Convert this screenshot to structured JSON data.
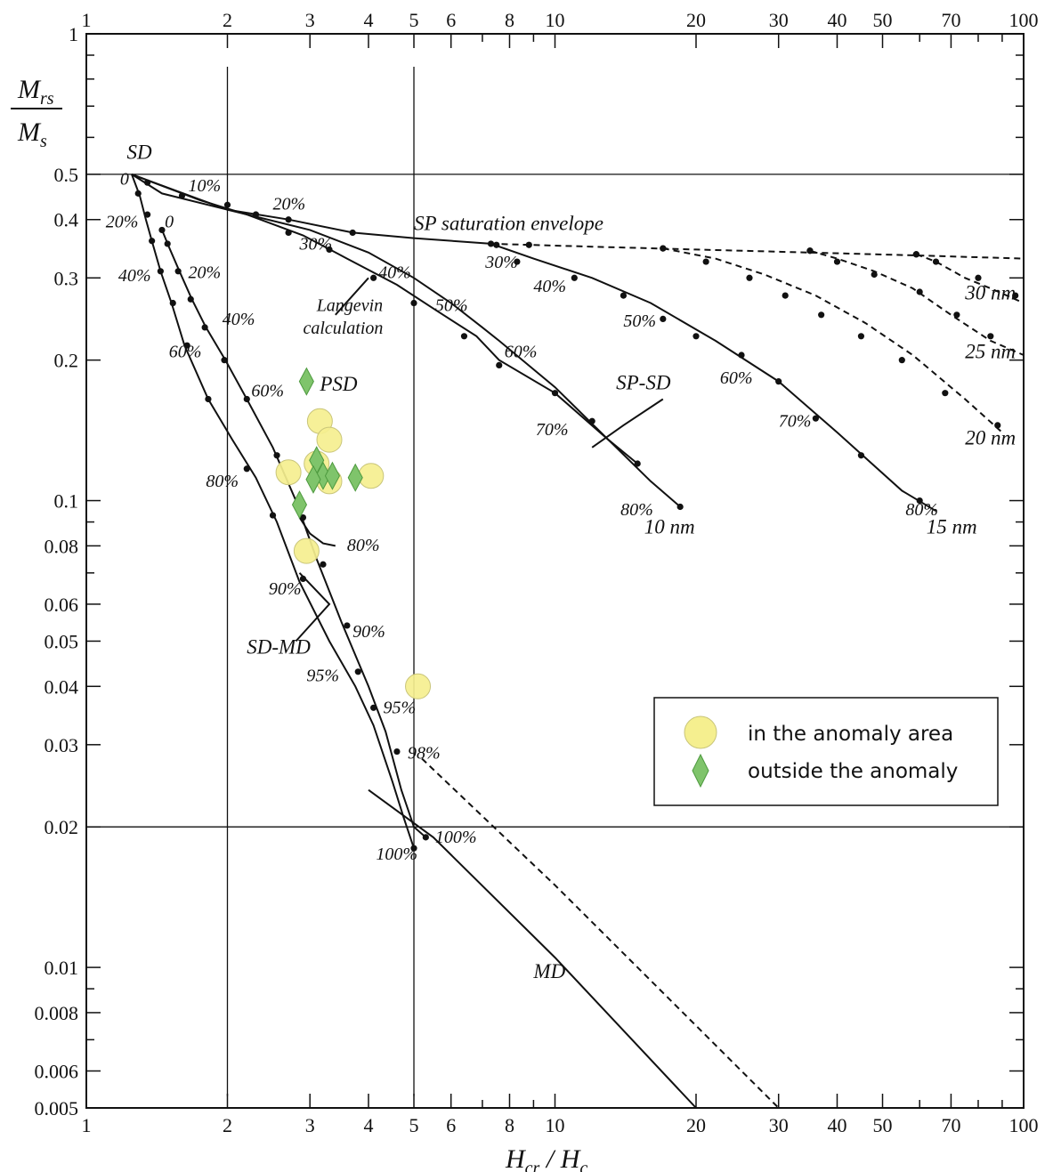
{
  "chart_data": {
    "type": "line",
    "xlabel": "Hcr / Hc",
    "ylabel": "Mrs / Ms",
    "x_scale": "log",
    "y_scale": "log",
    "xlim": [
      1,
      100
    ],
    "ylim": [
      0.005,
      1
    ],
    "x_ticks_major": [
      1,
      2,
      3,
      4,
      5,
      6,
      8,
      10,
      20,
      30,
      40,
      50,
      70,
      100
    ],
    "x_tick_labels": [
      "1",
      "2",
      "3",
      "4",
      "5",
      "6",
      "8",
      "10",
      "20",
      "30",
      "40",
      "50",
      "70",
      "100"
    ],
    "y_ticks_major": [
      0.005,
      0.006,
      0.008,
      0.01,
      0.02,
      0.03,
      0.04,
      0.05,
      0.06,
      0.08,
      0.1,
      0.2,
      0.3,
      0.4,
      0.5,
      1
    ],
    "y_tick_labels": [
      "0.005",
      "0.006",
      "0.008",
      "0.01",
      "0.02",
      "0.03",
      "0.04",
      "0.05",
      "0.06",
      "0.08",
      "0.1",
      "0.2",
      "0.3",
      "0.4",
      "0.5",
      "1"
    ],
    "reference_lines": {
      "horizontal": [
        0.5,
        0.02
      ],
      "vertical": [
        2,
        5
      ]
    },
    "series": [
      {
        "style": "solid",
        "points": [
          [
            1.25,
            0.5
          ],
          [
            1.3,
            0.45
          ],
          [
            1.34,
            0.4
          ],
          [
            1.38,
            0.36
          ],
          [
            1.44,
            0.31
          ],
          [
            1.52,
            0.265
          ],
          [
            1.62,
            0.215
          ],
          [
            1.82,
            0.165
          ],
          [
            2.05,
            0.135
          ],
          [
            2.3,
            0.112
          ],
          [
            2.55,
            0.09
          ],
          [
            2.85,
            0.067
          ],
          [
            3.3,
            0.05
          ],
          [
            3.75,
            0.04
          ],
          [
            4.1,
            0.033
          ],
          [
            4.5,
            0.025
          ],
          [
            4.75,
            0.021
          ],
          [
            5.0,
            0.018
          ]
        ],
        "markers": [
          [
            1.29,
            0.455
          ],
          [
            1.35,
            0.41
          ],
          [
            1.38,
            0.36
          ],
          [
            1.44,
            0.31
          ],
          [
            1.53,
            0.265
          ],
          [
            1.64,
            0.215
          ],
          [
            1.82,
            0.165
          ],
          [
            2.2,
            0.117
          ],
          [
            2.5,
            0.093
          ],
          [
            2.9,
            0.068
          ],
          [
            3.8,
            0.043
          ],
          [
            4.6,
            0.029
          ],
          [
            5.0,
            0.018
          ]
        ]
      },
      {
        "style": "solid",
        "points": [
          [
            1.45,
            0.38
          ],
          [
            1.5,
            0.35
          ],
          [
            1.58,
            0.31
          ],
          [
            1.68,
            0.27
          ],
          [
            1.8,
            0.235
          ],
          [
            1.98,
            0.2
          ],
          [
            2.2,
            0.165
          ],
          [
            2.5,
            0.13
          ],
          [
            2.8,
            0.1
          ],
          [
            3.1,
            0.075
          ],
          [
            3.5,
            0.055
          ],
          [
            4.0,
            0.04
          ],
          [
            4.35,
            0.032
          ],
          [
            4.7,
            0.024
          ],
          [
            5.0,
            0.02
          ],
          [
            5.3,
            0.019
          ]
        ],
        "markers": [
          [
            1.45,
            0.38
          ],
          [
            1.49,
            0.355
          ],
          [
            1.57,
            0.31
          ],
          [
            1.67,
            0.27
          ],
          [
            1.79,
            0.235
          ],
          [
            1.97,
            0.2
          ],
          [
            2.2,
            0.165
          ],
          [
            2.55,
            0.125
          ],
          [
            2.9,
            0.092
          ],
          [
            3.2,
            0.073
          ],
          [
            3.6,
            0.054
          ],
          [
            4.1,
            0.036
          ],
          [
            5.3,
            0.019
          ]
        ]
      },
      {
        "style": "solid",
        "points": [
          [
            2.85,
            0.092
          ],
          [
            3.0,
            0.085
          ],
          [
            3.2,
            0.081
          ],
          [
            3.4,
            0.08
          ]
        ]
      },
      {
        "style": "solid",
        "points": [
          [
            1.25,
            0.5
          ],
          [
            1.45,
            0.455
          ],
          [
            2.0,
            0.42
          ],
          [
            3.0,
            0.38
          ],
          [
            4.0,
            0.34
          ],
          [
            5.0,
            0.3
          ],
          [
            6.0,
            0.265
          ],
          [
            7.0,
            0.235
          ],
          [
            7.6,
            0.22
          ],
          [
            10,
            0.175
          ],
          [
            13,
            0.135
          ],
          [
            15,
            0.12
          ]
        ]
      },
      {
        "style": "solid",
        "points": [
          [
            1.25,
            0.5
          ],
          [
            1.75,
            0.44
          ],
          [
            2.2,
            0.41
          ],
          [
            2.9,
            0.37
          ],
          [
            3.6,
            0.33
          ],
          [
            4.6,
            0.29
          ],
          [
            5.6,
            0.255
          ],
          [
            6.8,
            0.225
          ],
          [
            7.6,
            0.2
          ],
          [
            10,
            0.17
          ],
          [
            13,
            0.135
          ],
          [
            16,
            0.11
          ],
          [
            18.5,
            0.097
          ]
        ],
        "markers": [
          [
            1.35,
            0.48
          ],
          [
            1.6,
            0.45
          ],
          [
            2.0,
            0.43
          ],
          [
            2.3,
            0.41
          ],
          [
            2.7,
            0.375
          ],
          [
            3.3,
            0.345
          ],
          [
            4.1,
            0.3
          ],
          [
            5.0,
            0.265
          ],
          [
            6.4,
            0.225
          ],
          [
            7.6,
            0.195
          ],
          [
            10,
            0.17
          ],
          [
            12,
            0.148
          ],
          [
            15,
            0.12
          ],
          [
            18.5,
            0.097
          ]
        ]
      },
      {
        "style": "solid",
        "points": [
          [
            1.25,
            0.5
          ],
          [
            2.0,
            0.42
          ],
          [
            2.7,
            0.4
          ],
          [
            3.7,
            0.375
          ],
          [
            5.0,
            0.365
          ],
          [
            7.3,
            0.355
          ],
          [
            9,
            0.33
          ],
          [
            12,
            0.3
          ],
          [
            16,
            0.265
          ],
          [
            22,
            0.22
          ],
          [
            30,
            0.18
          ],
          [
            40,
            0.14
          ],
          [
            55,
            0.105
          ],
          [
            65,
            0.095
          ]
        ],
        "markers": [
          [
            2.3,
            0.41
          ],
          [
            2.7,
            0.4
          ],
          [
            3.7,
            0.375
          ],
          [
            7.3,
            0.355
          ],
          [
            7.5,
            0.353
          ],
          [
            8.3,
            0.325
          ],
          [
            11,
            0.3
          ],
          [
            14,
            0.275
          ],
          [
            17,
            0.245
          ],
          [
            20,
            0.225
          ],
          [
            25,
            0.205
          ],
          [
            30,
            0.18
          ],
          [
            36,
            0.15
          ],
          [
            45,
            0.125
          ],
          [
            60,
            0.1
          ]
        ]
      },
      {
        "style": "dashed",
        "points": [
          [
            7.3,
            0.355
          ],
          [
            12,
            0.35
          ],
          [
            20,
            0.345
          ],
          [
            35,
            0.34
          ],
          [
            60,
            0.335
          ],
          [
            100,
            0.33
          ]
        ],
        "markers": [
          [
            8.8,
            0.353
          ],
          [
            17,
            0.347
          ],
          [
            35,
            0.343
          ],
          [
            59,
            0.337
          ]
        ]
      },
      {
        "style": "dashed",
        "points": [
          [
            17,
            0.347
          ],
          [
            22,
            0.33
          ],
          [
            28,
            0.305
          ],
          [
            36,
            0.275
          ],
          [
            46,
            0.24
          ],
          [
            58,
            0.205
          ],
          [
            75,
            0.165
          ],
          [
            90,
            0.14
          ]
        ],
        "markers": [
          [
            17,
            0.347
          ],
          [
            21,
            0.325
          ],
          [
            26,
            0.3
          ],
          [
            31,
            0.275
          ],
          [
            37,
            0.25
          ],
          [
            45,
            0.225
          ],
          [
            55,
            0.2
          ],
          [
            68,
            0.17
          ],
          [
            88,
            0.145
          ]
        ]
      },
      {
        "style": "dashed",
        "points": [
          [
            35,
            0.343
          ],
          [
            40,
            0.33
          ],
          [
            48,
            0.31
          ],
          [
            58,
            0.285
          ],
          [
            70,
            0.25
          ],
          [
            85,
            0.22
          ],
          [
            100,
            0.205
          ]
        ],
        "markers": [
          [
            35,
            0.343
          ],
          [
            40,
            0.325
          ],
          [
            48,
            0.305
          ],
          [
            60,
            0.28
          ],
          [
            72,
            0.25
          ],
          [
            85,
            0.225
          ]
        ]
      },
      {
        "style": "dashed",
        "points": [
          [
            59,
            0.337
          ],
          [
            65,
            0.325
          ],
          [
            75,
            0.3
          ],
          [
            85,
            0.285
          ],
          [
            100,
            0.265
          ]
        ],
        "markers": [
          [
            59,
            0.337
          ],
          [
            65,
            0.325
          ],
          [
            80,
            0.3
          ],
          [
            96,
            0.275
          ]
        ]
      },
      {
        "style": "solid",
        "points": [
          [
            4.0,
            0.024
          ],
          [
            5.5,
            0.019
          ],
          [
            10,
            0.0105
          ],
          [
            20,
            0.005
          ]
        ]
      },
      {
        "style": "dashed",
        "points": [
          [
            5.2,
            0.028
          ],
          [
            10,
            0.015
          ],
          [
            20,
            0.0075
          ],
          [
            30,
            0.005
          ]
        ]
      },
      {
        "style": "solid",
        "points": [
          [
            17,
            0.165
          ],
          [
            14,
            0.145
          ],
          [
            12,
            0.13
          ]
        ]
      },
      {
        "style": "solid",
        "points": [
          [
            2.85,
            0.07
          ],
          [
            3.3,
            0.06
          ],
          [
            2.8,
            0.05
          ]
        ]
      },
      {
        "style": "solid",
        "points": [
          [
            4.0,
            0.3
          ],
          [
            3.4,
            0.25
          ]
        ]
      }
    ],
    "scatter": [
      {
        "name": "in the anomaly area",
        "marker": "circle",
        "color": "#f5ef8f",
        "points": [
          [
            3.15,
            0.148
          ],
          [
            3.3,
            0.135
          ],
          [
            2.7,
            0.115
          ],
          [
            3.1,
            0.12
          ],
          [
            3.3,
            0.11
          ],
          [
            4.05,
            0.113
          ],
          [
            2.95,
            0.078
          ],
          [
            5.1,
            0.04
          ]
        ]
      },
      {
        "name": "outside the anomaly",
        "marker": "diamond",
        "color": "#7fc46b",
        "points": [
          [
            2.95,
            0.18
          ],
          [
            3.1,
            0.122
          ],
          [
            3.2,
            0.113
          ],
          [
            3.35,
            0.113
          ],
          [
            3.05,
            0.111
          ],
          [
            3.75,
            0.112
          ],
          [
            2.85,
            0.098
          ]
        ]
      }
    ],
    "legend": {
      "position": "bottom-right",
      "entries": [
        "in the anomaly area",
        "outside the anomaly"
      ]
    },
    "annotations": [
      {
        "text": "SD",
        "x": 1.22,
        "y": 0.54,
        "size": "big"
      },
      {
        "text": "0",
        "x": 1.18,
        "y": 0.475
      },
      {
        "text": "10%",
        "x": 1.65,
        "y": 0.46
      },
      {
        "text": "20%",
        "x": 1.1,
        "y": 0.385
      },
      {
        "text": "0",
        "x": 1.47,
        "y": 0.385
      },
      {
        "text": "20%",
        "x": 2.5,
        "y": 0.42
      },
      {
        "text": "SP saturation envelope",
        "x": 5.0,
        "y": 0.38,
        "size": "big"
      },
      {
        "text": "30%",
        "x": 2.85,
        "y": 0.345
      },
      {
        "text": "20%",
        "x": 1.65,
        "y": 0.3
      },
      {
        "text": "40%",
        "x": 1.17,
        "y": 0.295
      },
      {
        "text": "30%",
        "x": 7.1,
        "y": 0.315
      },
      {
        "text": "40%",
        "x": 4.2,
        "y": 0.3
      },
      {
        "text": "40%",
        "x": 9.0,
        "y": 0.28
      },
      {
        "text": "30 nm",
        "x": 75,
        "y": 0.27,
        "size": "big"
      },
      {
        "text": "Langevin",
        "x": 3.1,
        "y": 0.255
      },
      {
        "text": "calculation",
        "x": 2.9,
        "y": 0.228
      },
      {
        "text": "50%",
        "x": 5.55,
        "y": 0.255
      },
      {
        "text": "40%",
        "x": 1.95,
        "y": 0.238
      },
      {
        "text": "50%",
        "x": 14,
        "y": 0.236
      },
      {
        "text": "25 nm",
        "x": 75,
        "y": 0.202,
        "size": "big"
      },
      {
        "text": "60%",
        "x": 1.5,
        "y": 0.203
      },
      {
        "text": "60%",
        "x": 7.8,
        "y": 0.203
      },
      {
        "text": "SP-SD",
        "x": 13.5,
        "y": 0.173,
        "size": "big"
      },
      {
        "text": "60%",
        "x": 22.5,
        "y": 0.178
      },
      {
        "text": "PSD",
        "x": 3.15,
        "y": 0.172,
        "size": "big"
      },
      {
        "text": "60%",
        "x": 2.25,
        "y": 0.167
      },
      {
        "text": "70%",
        "x": 30,
        "y": 0.144
      },
      {
        "text": "70%",
        "x": 9.1,
        "y": 0.138
      },
      {
        "text": "20 nm",
        "x": 75,
        "y": 0.132,
        "size": "big"
      },
      {
        "text": "80%",
        "x": 1.8,
        "y": 0.107
      },
      {
        "text": "80%",
        "x": 13.8,
        "y": 0.093
      },
      {
        "text": "80%",
        "x": 56,
        "y": 0.093
      },
      {
        "text": "10 nm",
        "x": 15.5,
        "y": 0.085,
        "size": "big"
      },
      {
        "text": "15 nm",
        "x": 62,
        "y": 0.085,
        "size": "big"
      },
      {
        "text": "80%",
        "x": 3.6,
        "y": 0.078
      },
      {
        "text": "90%",
        "x": 2.45,
        "y": 0.063
      },
      {
        "text": "SD-MD",
        "x": 2.2,
        "y": 0.047,
        "size": "big"
      },
      {
        "text": "90%",
        "x": 3.7,
        "y": 0.051
      },
      {
        "text": "95%",
        "x": 2.95,
        "y": 0.041
      },
      {
        "text": "95%",
        "x": 4.3,
        "y": 0.035
      },
      {
        "text": "98%",
        "x": 4.85,
        "y": 0.028
      },
      {
        "text": "100%",
        "x": 5.55,
        "y": 0.0185
      },
      {
        "text": "100%",
        "x": 4.15,
        "y": 0.017
      },
      {
        "text": "MD",
        "x": 9.0,
        "y": 0.0095,
        "size": "big"
      }
    ]
  }
}
